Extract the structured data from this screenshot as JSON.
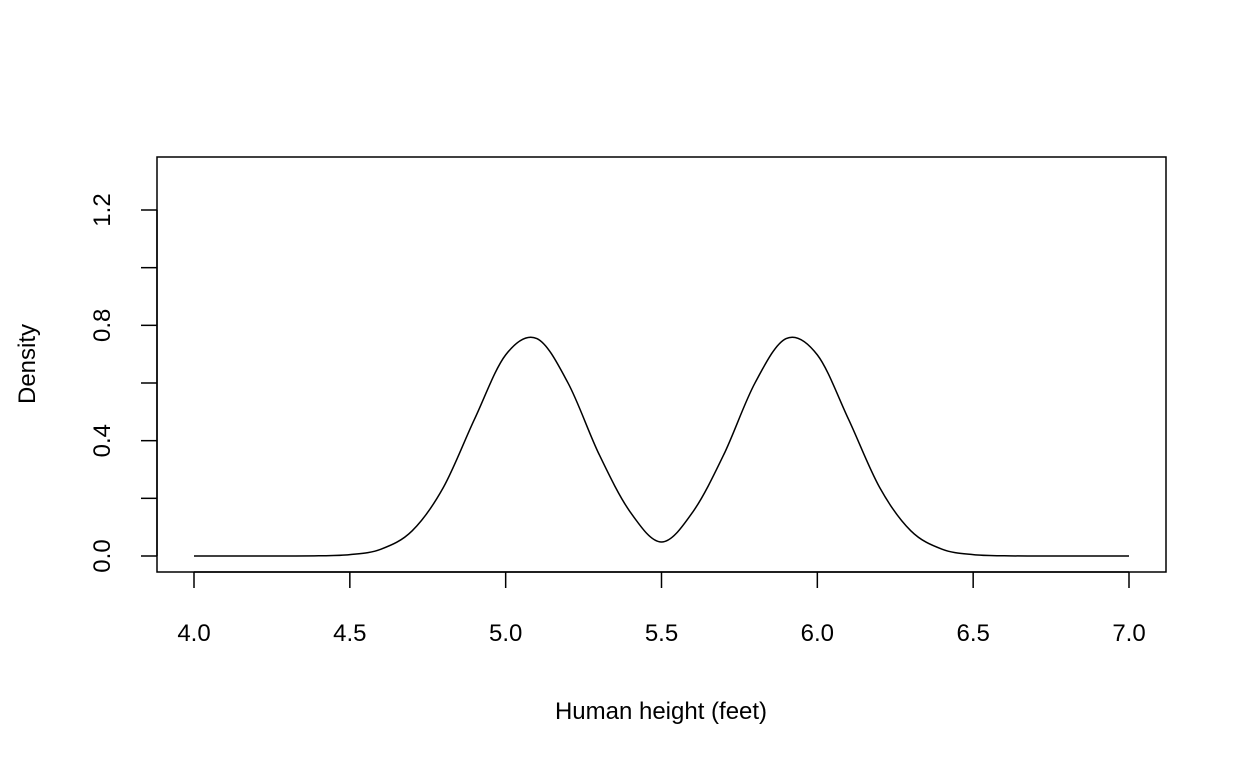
{
  "chart_data": {
    "type": "line",
    "title": "",
    "xlabel": "Human height (feet)",
    "ylabel": "Density",
    "xlim": [
      4.0,
      7.0
    ],
    "ylim": [
      0.0,
      1.33
    ],
    "grid": false,
    "x_ticks": [
      4.0,
      4.5,
      5.0,
      5.5,
      6.0,
      6.5,
      7.0
    ],
    "x_tick_labels": [
      "4.0",
      "4.5",
      "5.0",
      "5.5",
      "6.0",
      "6.5",
      "7.0"
    ],
    "y_ticks": [
      0.0,
      0.2,
      0.4,
      0.6,
      0.8,
      1.0,
      1.2
    ],
    "y_tick_labels": [
      "0.0",
      "",
      "0.4",
      "",
      "0.8",
      "",
      "1.2"
    ],
    "series": [
      {
        "x": [
          4.0,
          4.1,
          4.2,
          4.3,
          4.4,
          4.5,
          4.6,
          4.7,
          4.8,
          4.9,
          5.0,
          5.1,
          5.2,
          5.3,
          5.4,
          5.5,
          5.6,
          5.7,
          5.8,
          5.9,
          6.0,
          6.1,
          6.2,
          6.3,
          6.4,
          6.5,
          6.6,
          6.7,
          6.8,
          6.9,
          7.0
        ],
        "y": [
          0.0,
          0.0,
          0.0,
          0.0001,
          0.0007,
          0.0047,
          0.0237,
          0.0874,
          0.2375,
          0.4745,
          0.6975,
          0.7542,
          0.6002,
          0.352,
          0.1521,
          0.0485,
          0.1521,
          0.352,
          0.6002,
          0.7542,
          0.6975,
          0.4745,
          0.2375,
          0.0874,
          0.0237,
          0.0047,
          0.0007,
          0.0001,
          0.0,
          0.0,
          0.0
        ],
        "color": "#000000"
      }
    ]
  }
}
